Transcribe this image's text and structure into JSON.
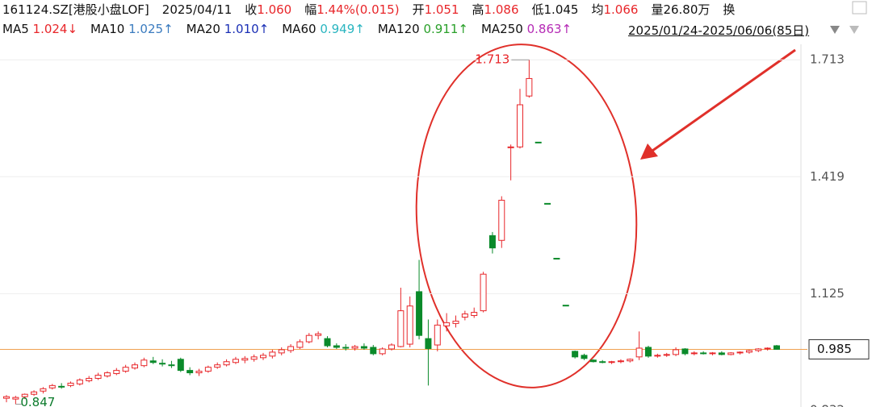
{
  "header": {
    "code": "161124.SZ[港股小盘LOF]",
    "date": "2025/04/11",
    "fields": [
      {
        "label": "收",
        "value": "1.060",
        "color": "#e8262a"
      },
      {
        "label": "幅",
        "value": "1.44%(0.015)",
        "color": "#e8262a"
      },
      {
        "label": "开",
        "value": "1.051",
        "color": "#e8262a"
      },
      {
        "label": "高",
        "value": "1.086",
        "color": "#e8262a"
      },
      {
        "label": "低",
        "value": "1.045",
        "color": "#111111"
      },
      {
        "label": "均",
        "value": "1.066",
        "color": "#e8262a"
      },
      {
        "label": "量",
        "value": "26.80万",
        "color": "#111111"
      },
      {
        "label": "换",
        "value": "",
        "color": "#111111"
      }
    ],
    "ma": [
      {
        "label": "MA5",
        "value": "1.024↓",
        "color": "#e8262a"
      },
      {
        "label": "MA10",
        "value": "1.025↑",
        "color": "#3a7bbf"
      },
      {
        "label": "MA20",
        "value": "1.010↑",
        "color": "#1a2fb5"
      },
      {
        "label": "MA60",
        "value": "0.949↑",
        "color": "#2ab5c0"
      },
      {
        "label": "MA120",
        "value": "0.911↑",
        "color": "#2aa02a"
      },
      {
        "label": "MA250",
        "value": "0.863↑",
        "color": "#b52ab5"
      }
    ],
    "range": "2025/01/24-2025/06/06(85日)"
  },
  "chart_data": {
    "type": "candlestick",
    "up_color": "#e8262a",
    "down_color": "#0a8a2a",
    "open": [
      0.862,
      0.86,
      0.866,
      0.872,
      0.88,
      0.888,
      0.892,
      0.894,
      0.898,
      0.906,
      0.912,
      0.918,
      0.924,
      0.93,
      0.938,
      0.944,
      0.956,
      0.95,
      0.946,
      0.96,
      0.932,
      0.926,
      0.93,
      0.94,
      0.946,
      0.952,
      0.958,
      0.96,
      0.964,
      0.968,
      0.976,
      0.982,
      0.99,
      1.004,
      1.02,
      1.012,
      0.994,
      0.99,
      0.988,
      0.992,
      0.99,
      0.974,
      0.986,
      0.992,
      0.998,
      1.13,
      1.012,
      0.996,
      1.044,
      1.05,
      1.066,
      1.07,
      1.082,
      1.271,
      1.259,
      1.494,
      1.494,
      1.622,
      1.506,
      1.352,
      1.214,
      1.096,
      0.98,
      0.97,
      0.958,
      0.954,
      0.952,
      0.954,
      0.956,
      0.966,
      0.99,
      0.968,
      0.97,
      0.972,
      0.986,
      0.974,
      0.976,
      0.974,
      0.976,
      0.972,
      0.976,
      0.978,
      0.982,
      0.986,
      0.994
    ],
    "high": [
      0.87,
      0.868,
      0.874,
      0.882,
      0.89,
      0.898,
      0.9,
      0.904,
      0.912,
      0.918,
      0.926,
      0.93,
      0.938,
      0.946,
      0.952,
      0.964,
      0.966,
      0.96,
      0.956,
      0.964,
      0.94,
      0.936,
      0.944,
      0.952,
      0.96,
      0.966,
      0.968,
      0.972,
      0.976,
      0.984,
      0.99,
      0.998,
      1.01,
      1.026,
      1.03,
      1.018,
      1.0,
      0.998,
      0.996,
      1.0,
      0.996,
      0.99,
      1.0,
      1.14,
      1.118,
      1.21,
      1.06,
      1.06,
      1.076,
      1.07,
      1.082,
      1.09,
      1.18,
      1.28,
      1.37,
      1.5,
      1.64,
      1.713,
      1.506,
      1.352,
      1.214,
      1.096,
      0.982,
      0.974,
      0.96,
      0.958,
      0.956,
      0.96,
      0.962,
      1.03,
      0.994,
      0.974,
      0.976,
      0.99,
      0.988,
      0.98,
      0.98,
      0.978,
      0.98,
      0.978,
      0.98,
      0.984,
      0.988,
      0.99,
      0.996
    ],
    "low": [
      0.852,
      0.847,
      0.86,
      0.868,
      0.874,
      0.884,
      0.886,
      0.89,
      0.894,
      0.902,
      0.908,
      0.914,
      0.92,
      0.926,
      0.934,
      0.94,
      0.948,
      0.942,
      0.938,
      0.928,
      0.92,
      0.918,
      0.926,
      0.936,
      0.942,
      0.948,
      0.95,
      0.954,
      0.958,
      0.962,
      0.97,
      0.976,
      0.986,
      1.0,
      1.01,
      0.99,
      0.986,
      0.982,
      0.982,
      0.984,
      0.97,
      0.97,
      0.982,
      0.99,
      0.99,
      1.01,
      0.894,
      0.98,
      1.03,
      1.04,
      1.058,
      1.064,
      1.078,
      1.226,
      1.24,
      1.41,
      1.49,
      1.618,
      1.506,
      1.352,
      1.214,
      1.096,
      0.962,
      0.958,
      0.952,
      0.95,
      0.948,
      0.95,
      0.952,
      0.958,
      0.964,
      0.964,
      0.966,
      0.968,
      0.97,
      0.97,
      0.972,
      0.97,
      0.97,
      0.97,
      0.972,
      0.974,
      0.978,
      0.982,
      0.984
    ],
    "close": [
      0.866,
      0.864,
      0.872,
      0.878,
      0.886,
      0.894,
      0.89,
      0.9,
      0.908,
      0.912,
      0.92,
      0.926,
      0.932,
      0.94,
      0.946,
      0.958,
      0.952,
      0.948,
      0.944,
      0.932,
      0.926,
      0.93,
      0.94,
      0.946,
      0.954,
      0.96,
      0.962,
      0.966,
      0.97,
      0.978,
      0.984,
      0.992,
      1.004,
      1.02,
      1.024,
      0.994,
      0.99,
      0.988,
      0.992,
      0.988,
      0.974,
      0.986,
      0.996,
      1.082,
      1.094,
      1.02,
      0.987,
      1.046,
      1.052,
      1.056,
      1.074,
      1.078,
      1.174,
      1.24,
      1.36,
      1.494,
      1.6,
      1.666,
      1.506,
      1.352,
      1.214,
      1.096,
      0.966,
      0.962,
      0.954,
      0.952,
      0.954,
      0.956,
      0.96,
      0.988,
      0.968,
      0.97,
      0.972,
      0.984,
      0.974,
      0.976,
      0.974,
      0.976,
      0.972,
      0.976,
      0.978,
      0.982,
      0.986,
      0.988,
      0.985
    ],
    "ylim": [
      0.84,
      1.752
    ],
    "yticks": [
      1.713,
      1.419,
      1.125,
      0.832
    ],
    "grid": true,
    "max_label": 1.713,
    "min_label": 0.847,
    "last_price": 0.985,
    "last_color": "#f0a050"
  }
}
